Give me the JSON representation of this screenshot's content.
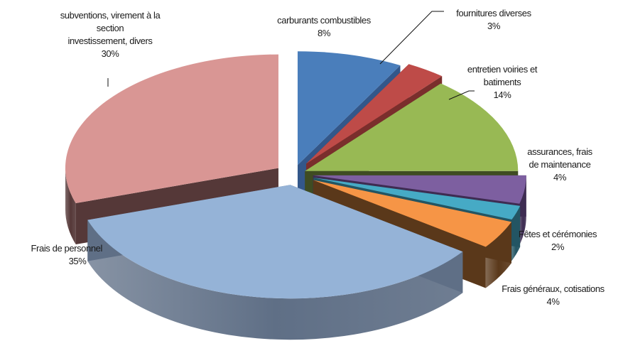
{
  "chart_data": {
    "type": "pie",
    "style": "3d-exploded",
    "title": "",
    "legend": "none",
    "slices": [
      {
        "label": "carburants combustibles",
        "pct_text": "8%",
        "value": 8,
        "color": "#4a7ebb",
        "side": "#33578a"
      },
      {
        "label": "fournitures diverses",
        "pct_text": "3%",
        "value": 3,
        "color": "#be4b48",
        "side": "#7a2e2c"
      },
      {
        "label": "entretien voiries et batiments",
        "pct_text": "14%",
        "value": 14,
        "color": "#98b954",
        "side": "#3f4c22"
      },
      {
        "label": "assurances, frais de maintenance",
        "pct_text": "4%",
        "value": 4,
        "color": "#7d5fa0",
        "side": "#3e2c52"
      },
      {
        "label": "Fêtes et cérémonies",
        "pct_text": "2%",
        "value": 2,
        "color": "#46aac5",
        "side": "#235563"
      },
      {
        "label": "Frais généraux, cotisations",
        "pct_text": "4%",
        "value": 4,
        "color": "#f69546",
        "side": "#5a381a"
      },
      {
        "label": "Frais de personnel",
        "pct_text": "35%",
        "value": 35,
        "color": "#95b3d7",
        "side": "#5f6f86"
      },
      {
        "label": "subventions, virement à la section investissement, divers",
        "pct_text": "30%",
        "value": 30,
        "color": "#d99694",
        "side": "#553838"
      }
    ]
  }
}
